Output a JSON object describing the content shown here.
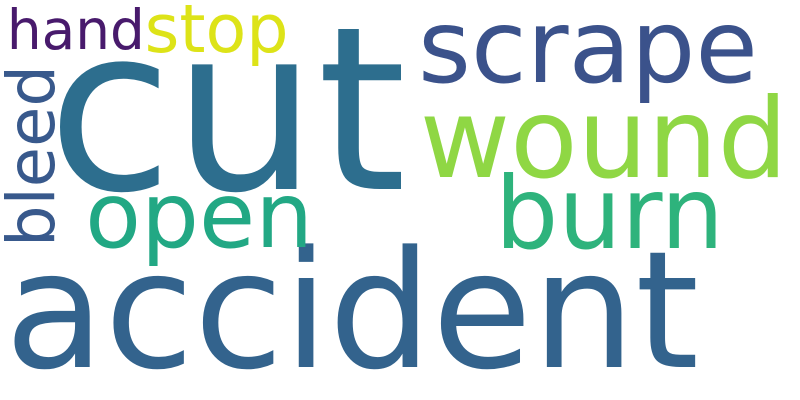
{
  "words": [
    {
      "id": "accident",
      "text": "accident",
      "color": "#33638d"
    },
    {
      "id": "cut",
      "text": "cut",
      "color": "#2d6e8e"
    },
    {
      "id": "scrape",
      "text": "scrape",
      "color": "#3b528b"
    },
    {
      "id": "wound",
      "text": "wound",
      "color": "#8fd744"
    },
    {
      "id": "burn",
      "text": "burn",
      "color": "#2eb37c"
    },
    {
      "id": "open",
      "text": "open",
      "color": "#22a884"
    },
    {
      "id": "hand",
      "text": "hand",
      "color": "#481a6c"
    },
    {
      "id": "stop",
      "text": "stop",
      "color": "#dde318"
    },
    {
      "id": "bleed",
      "text": "bleed",
      "color": "#38598c",
      "orientation": "vertical"
    }
  ]
}
